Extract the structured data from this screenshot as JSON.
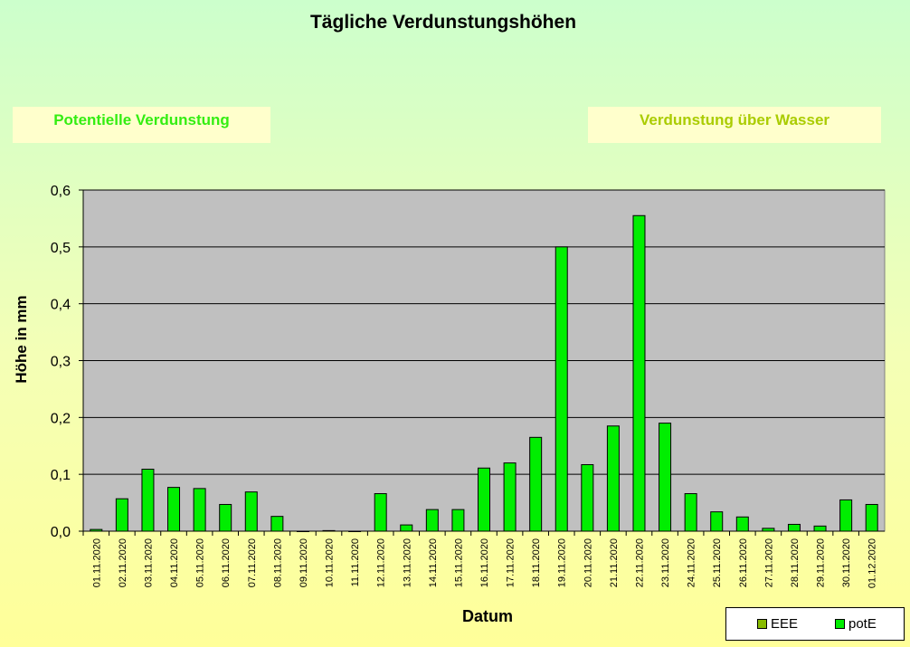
{
  "header": {
    "left_label": "Potentielle Verdunstung",
    "right_label": "Verdunstung über Wasser"
  },
  "colors": {
    "plot_background": "#c0c0c0",
    "bar_potE": "#00ee00",
    "legend_EEE": "#88bb00",
    "label_left": "#33ee11",
    "label_right": "#aacc00"
  },
  "chart_data": {
    "type": "bar",
    "title": "Tägliche Verdunstungshöhen",
    "xlabel": "Datum",
    "ylabel": "Höhe in mm",
    "ylim": [
      0,
      0.6
    ],
    "yticks": [
      "0,0",
      "0,1",
      "0,2",
      "0,3",
      "0,4",
      "0,5",
      "0,6"
    ],
    "grid": true,
    "legend_position": "bottom-right",
    "categories": [
      "01.11.2020",
      "02.11.2020",
      "03.11.2020",
      "04.11.2020",
      "05.11.2020",
      "06.11.2020",
      "07.11.2020",
      "08.11.2020",
      "09.11.2020",
      "10.11.2020",
      "11.11.2020",
      "12.11.2020",
      "13.11.2020",
      "14.11.2020",
      "15.11.2020",
      "16.11.2020",
      "17.11.2020",
      "18.11.2020",
      "19.11.2020",
      "20.11.2020",
      "21.11.2020",
      "22.11.2020",
      "23.11.2020",
      "24.11.2020",
      "25.11.2020",
      "26.11.2020",
      "27.11.2020",
      "28.11.2020",
      "29.11.2020",
      "30.11.2020",
      "01.12.2020"
    ],
    "series": [
      {
        "name": "EEE",
        "color": "#88bb00",
        "values": [
          null,
          null,
          null,
          null,
          null,
          null,
          null,
          null,
          null,
          null,
          null,
          null,
          null,
          null,
          null,
          null,
          null,
          null,
          null,
          null,
          null,
          null,
          null,
          null,
          null,
          null,
          null,
          null,
          null,
          null,
          null
        ]
      },
      {
        "name": "potE",
        "color": "#00ee00",
        "values": [
          0.003,
          0.057,
          0.109,
          0.077,
          0.075,
          0.047,
          0.069,
          0.026,
          0,
          0.001,
          0,
          0.066,
          0.011,
          0.038,
          0.038,
          0.111,
          0.12,
          0.165,
          0.5,
          0.117,
          0.185,
          0.555,
          0.19,
          0.066,
          0.034,
          0.025,
          0.005,
          0.012,
          0.009,
          0.055,
          0.047
        ]
      }
    ]
  }
}
